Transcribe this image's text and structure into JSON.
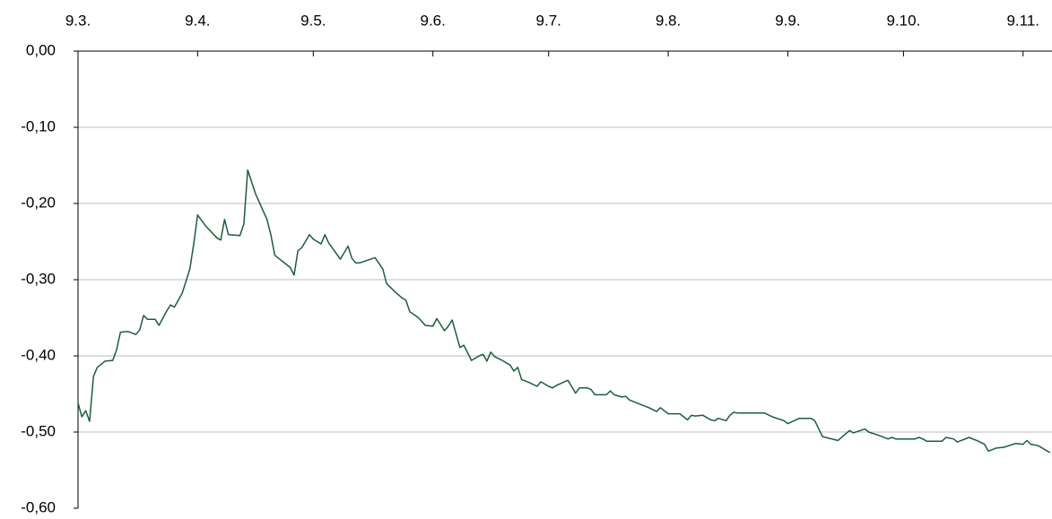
{
  "chart_data": {
    "type": "line",
    "color": "#1b5e3b",
    "grid": true,
    "xlim": [
      0,
      252.5
    ],
    "xticks": [
      {
        "value": 0,
        "label": "9.3."
      },
      {
        "value": 31,
        "label": "9.4."
      },
      {
        "value": 61,
        "label": "9.5."
      },
      {
        "value": 92,
        "label": "9.6."
      },
      {
        "value": 122,
        "label": "9.7."
      },
      {
        "value": 153,
        "label": "9.8."
      },
      {
        "value": 184,
        "label": "9.9."
      },
      {
        "value": 214,
        "label": "9.10."
      },
      {
        "value": 245,
        "label": "9.11."
      }
    ],
    "ylim": [
      -0.6,
      0
    ],
    "yticks": [
      {
        "value": 0,
        "label": "0,00"
      },
      {
        "value": -0.1,
        "label": "-0,10"
      },
      {
        "value": -0.2,
        "label": "-0,20"
      },
      {
        "value": -0.3,
        "label": "-0,30"
      },
      {
        "value": -0.4,
        "label": "-0,40"
      },
      {
        "value": -0.5,
        "label": "-0,50"
      },
      {
        "value": -0.6,
        "label": "-0,60"
      }
    ],
    "x": [
      0,
      1,
      2,
      3,
      4,
      5,
      7,
      9,
      10,
      11,
      13,
      15,
      16,
      17,
      18,
      20,
      21,
      23,
      24,
      25,
      27,
      29,
      30,
      31,
      33,
      36,
      37,
      38,
      39,
      42,
      43,
      44,
      46,
      49,
      50,
      51,
      55,
      56,
      57,
      58,
      60,
      61,
      63,
      64,
      65,
      68,
      70,
      71,
      72,
      73,
      77,
      79,
      80,
      82,
      84,
      85,
      86,
      88,
      89,
      90,
      92,
      93,
      94,
      95,
      96,
      97,
      99,
      100,
      102,
      104,
      105,
      106,
      107,
      108,
      110,
      112,
      113,
      114,
      115,
      117,
      119,
      120,
      122,
      123,
      124,
      127,
      129,
      130,
      132,
      133,
      134,
      137,
      138,
      139,
      141,
      142,
      143,
      146,
      148,
      150,
      151,
      153,
      156,
      158,
      159,
      160,
      162,
      164,
      165,
      166,
      168,
      169,
      170,
      171,
      178,
      180,
      183,
      184,
      187,
      190,
      191,
      193,
      197,
      200,
      201,
      204,
      205,
      208,
      210,
      211,
      212,
      215,
      217,
      218,
      219,
      220,
      224,
      225,
      227,
      228,
      231,
      233,
      235,
      236,
      238,
      240,
      243,
      245,
      246,
      247,
      249,
      252
    ],
    "values": [
      -0.462,
      -0.48,
      -0.472,
      -0.486,
      -0.427,
      -0.415,
      -0.407,
      -0.406,
      -0.392,
      -0.369,
      -0.368,
      -0.372,
      -0.366,
      -0.347,
      -0.352,
      -0.352,
      -0.36,
      -0.341,
      -0.333,
      -0.336,
      -0.318,
      -0.286,
      -0.253,
      -0.215,
      -0.229,
      -0.245,
      -0.248,
      -0.221,
      -0.241,
      -0.242,
      -0.227,
      -0.156,
      -0.187,
      -0.221,
      -0.241,
      -0.268,
      -0.284,
      -0.294,
      -0.262,
      -0.258,
      -0.241,
      -0.247,
      -0.253,
      -0.241,
      -0.252,
      -0.273,
      -0.256,
      -0.272,
      -0.278,
      -0.278,
      -0.271,
      -0.286,
      -0.305,
      -0.315,
      -0.324,
      -0.327,
      -0.342,
      -0.349,
      -0.354,
      -0.36,
      -0.361,
      -0.351,
      -0.359,
      -0.367,
      -0.361,
      -0.353,
      -0.389,
      -0.386,
      -0.406,
      -0.4,
      -0.398,
      -0.407,
      -0.395,
      -0.401,
      -0.406,
      -0.412,
      -0.42,
      -0.415,
      -0.431,
      -0.435,
      -0.44,
      -0.434,
      -0.44,
      -0.442,
      -0.439,
      -0.432,
      -0.449,
      -0.442,
      -0.442,
      -0.444,
      -0.451,
      -0.451,
      -0.446,
      -0.451,
      -0.454,
      -0.453,
      -0.458,
      -0.464,
      -0.468,
      -0.473,
      -0.468,
      -0.476,
      -0.476,
      -0.484,
      -0.478,
      -0.479,
      -0.478,
      -0.484,
      -0.485,
      -0.482,
      -0.485,
      -0.478,
      -0.474,
      -0.475,
      -0.475,
      -0.48,
      -0.485,
      -0.489,
      -0.482,
      -0.482,
      -0.485,
      -0.506,
      -0.511,
      -0.498,
      -0.501,
      -0.496,
      -0.5,
      -0.505,
      -0.509,
      -0.507,
      -0.509,
      -0.509,
      -0.509,
      -0.507,
      -0.509,
      -0.512,
      -0.512,
      -0.507,
      -0.509,
      -0.513,
      -0.507,
      -0.511,
      -0.516,
      -0.525,
      -0.521,
      -0.52,
      -0.515,
      -0.516,
      -0.511,
      -0.516,
      -0.518,
      -0.527
    ]
  }
}
